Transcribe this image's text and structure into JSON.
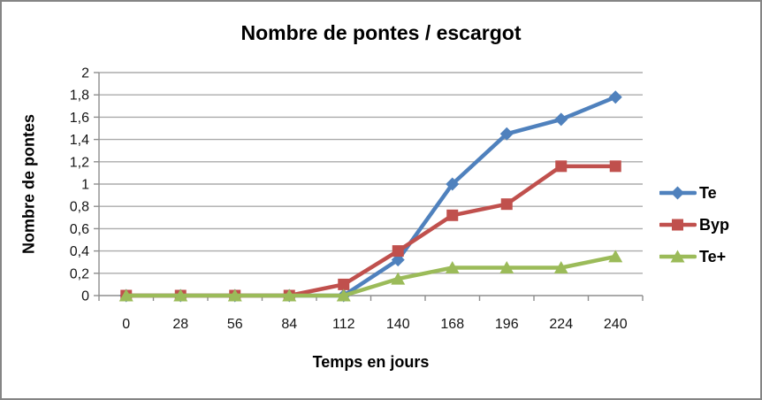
{
  "frame": {
    "background": "#FFFFFF",
    "border_color": "#858585"
  },
  "chart_data": {
    "type": "line",
    "title": "Nombre de pontes / escargot",
    "xlabel": "Temps en jours",
    "ylabel": "Nombre de pontes",
    "categories": [
      "0",
      "28",
      "56",
      "84",
      "112",
      "140",
      "168",
      "196",
      "224",
      "240"
    ],
    "series": [
      {
        "name": "Te",
        "color": "#4F81BD",
        "marker": "diamond",
        "values": [
          0,
          0,
          0,
          0,
          0,
          0.32,
          1,
          1.45,
          1.58,
          1.78
        ]
      },
      {
        "name": "Byp",
        "color": "#C0504D",
        "marker": "square",
        "values": [
          0,
          0,
          0,
          0,
          0.1,
          0.4,
          0.72,
          0.82,
          1.16,
          1.16
        ]
      },
      {
        "name": "Te+",
        "color": "#9BBB59",
        "marker": "triangle",
        "values": [
          0,
          0,
          0,
          0,
          0,
          0.15,
          0.25,
          0.25,
          0.25,
          0.35
        ]
      }
    ],
    "ylim": [
      0,
      2
    ],
    "y_tick_values": [
      0,
      0.2,
      0.4,
      0.6,
      0.8,
      1,
      1.2,
      1.4,
      1.6,
      1.8,
      2
    ],
    "y_tick_labels": [
      "0",
      "0,2",
      "0,4",
      "0,6",
      "0,8",
      "1",
      "1,2",
      "1,4",
      "1,6",
      "1,8",
      "2"
    ],
    "grid": "horizontal",
    "legend_position": "right",
    "axis_color": "#8E8E8E",
    "gridline_color": "#ABABAB",
    "text_color": "#141414"
  }
}
